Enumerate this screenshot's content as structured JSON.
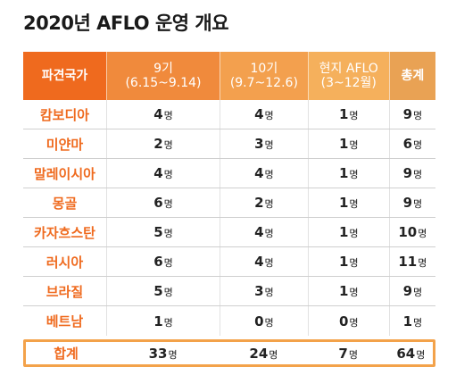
{
  "title": "2020년 AFLO 운영 개요",
  "unit": "명",
  "colors": {
    "accent": "#ef6a1e",
    "header_col2": "#f08a3c",
    "header_col3": "#f3a04e",
    "header_col4": "#f5b05c",
    "header_col5": "#e9a254",
    "total_border": "#f3a24a"
  },
  "headers": {
    "country": "파견국가",
    "batch9_line1": "9기",
    "batch9_line2": "(6.15~9.14)",
    "batch10_line1": "10기",
    "batch10_line2": "(9.7~12.6)",
    "local_line1": "현지 AFLO",
    "local_line2": "(3~12월)",
    "total": "총계"
  },
  "rows": [
    {
      "country": "캄보디아",
      "b9": "4",
      "b10": "4",
      "local": "1",
      "total": "9"
    },
    {
      "country": "미얀마",
      "b9": "2",
      "b10": "3",
      "local": "1",
      "total": "6"
    },
    {
      "country": "말레이시아",
      "b9": "4",
      "b10": "4",
      "local": "1",
      "total": "9"
    },
    {
      "country": "몽골",
      "b9": "6",
      "b10": "2",
      "local": "1",
      "total": "9"
    },
    {
      "country": "카자흐스탄",
      "b9": "5",
      "b10": "4",
      "local": "1",
      "total": "10"
    },
    {
      "country": "러시아",
      "b9": "6",
      "b10": "4",
      "local": "1",
      "total": "11"
    },
    {
      "country": "브라질",
      "b9": "5",
      "b10": "3",
      "local": "1",
      "total": "9"
    },
    {
      "country": "베트남",
      "b9": "1",
      "b10": "0",
      "local": "0",
      "total": "1"
    }
  ],
  "total_row": {
    "country": "합계",
    "b9": "33",
    "b10": "24",
    "local": "7",
    "total": "64"
  }
}
